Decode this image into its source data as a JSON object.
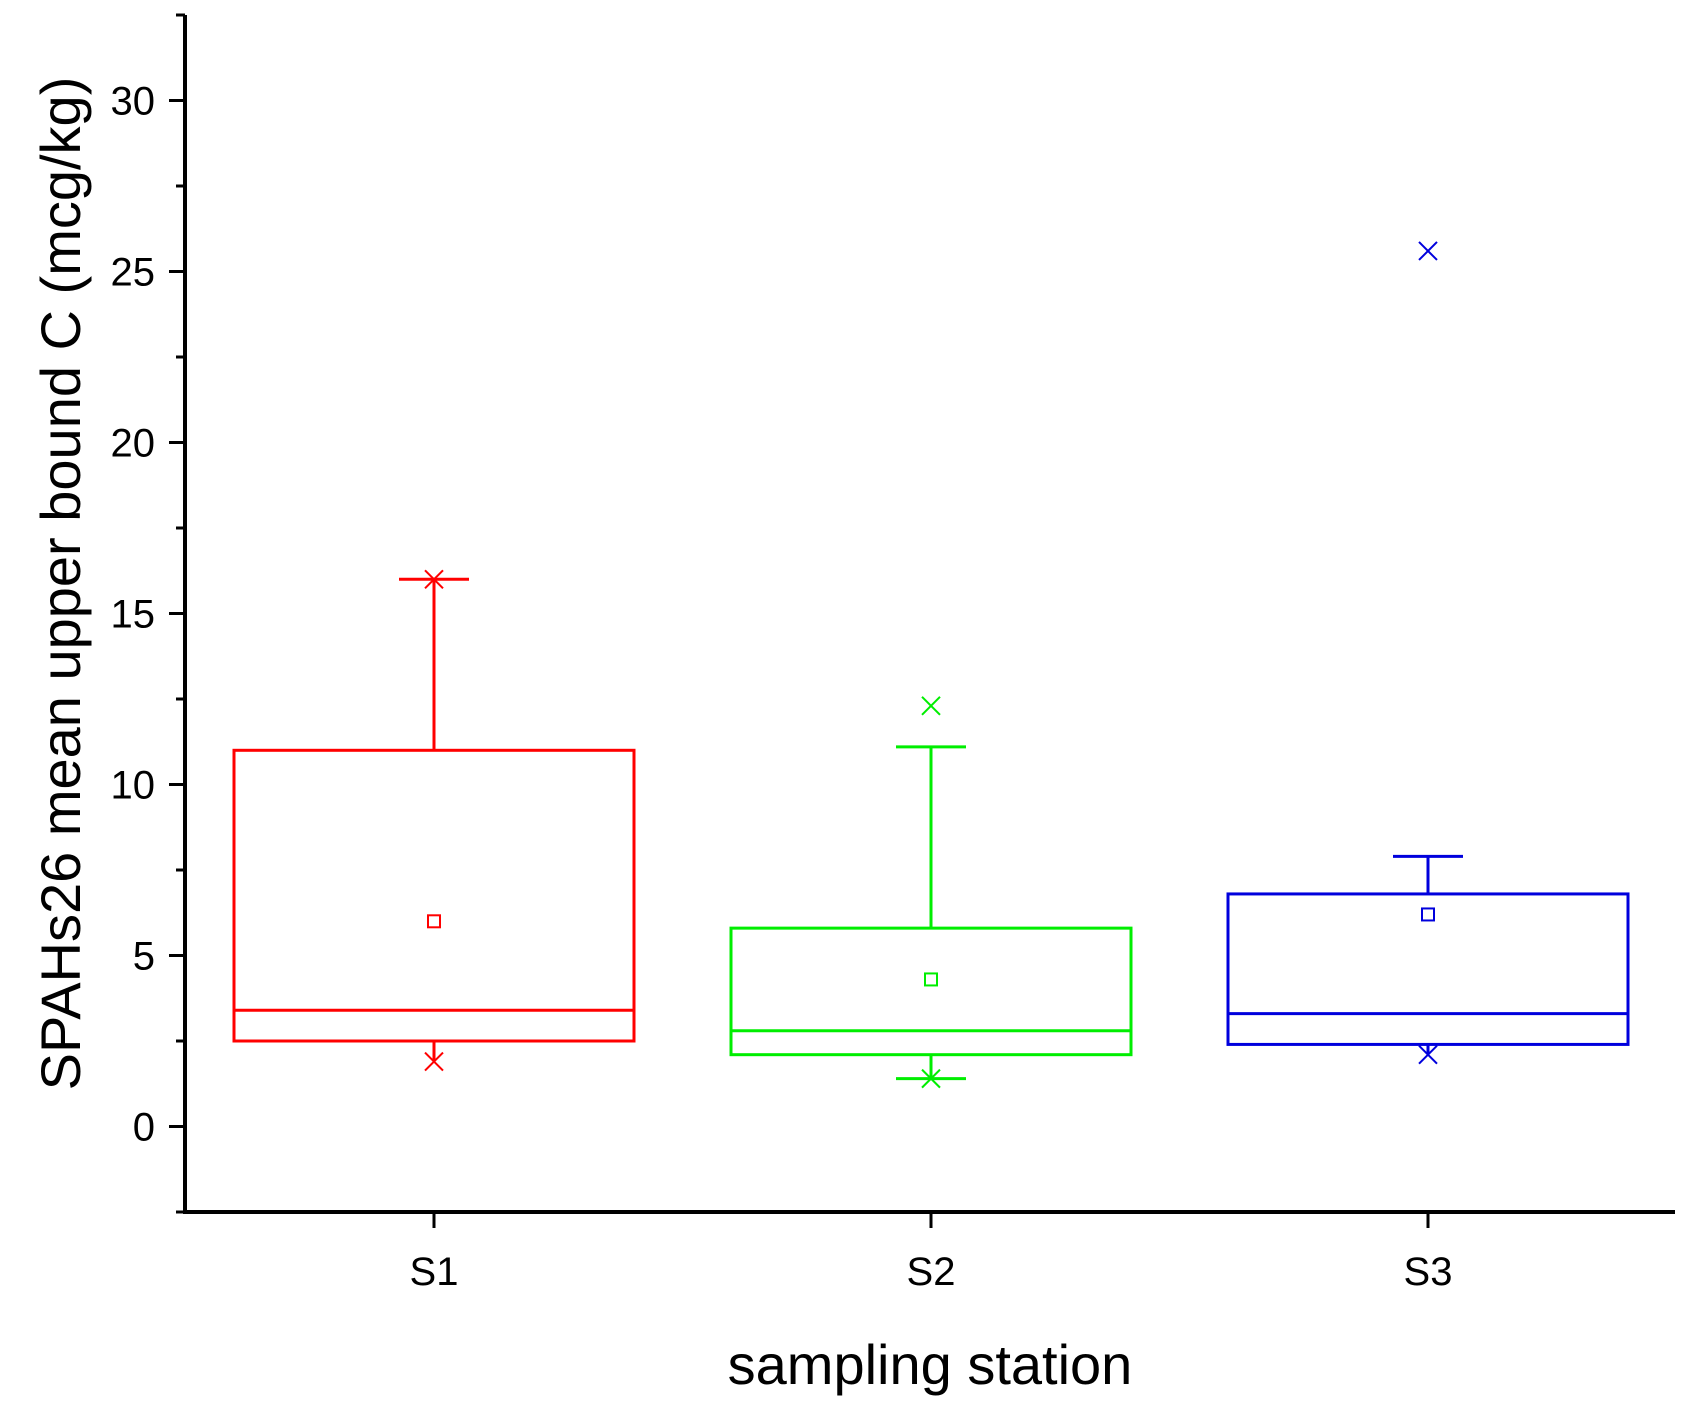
{
  "chart_data": {
    "type": "box",
    "title": "",
    "xlabel": "sampling station",
    "ylabel": "SPAHs26 mean upper bound C (mcg/kg)",
    "ylim": [
      -2.5,
      32.5
    ],
    "yticks": [
      0,
      5,
      10,
      15,
      20,
      25,
      30
    ],
    "categories": [
      "S1",
      "S2",
      "S3"
    ],
    "boxes": [
      {
        "name": "S1",
        "color": "#ff0000",
        "whisker_low": 2.5,
        "q1": 2.5,
        "median": 3.4,
        "q3": 11.0,
        "whisker_high": 16.0,
        "mean": 6.0,
        "min_marker": 1.9,
        "max_marker": 16.0,
        "outliers": []
      },
      {
        "name": "S2",
        "color": "#00ee00",
        "whisker_low": 1.4,
        "q1": 2.1,
        "median": 2.8,
        "q3": 5.8,
        "whisker_high": 11.1,
        "mean": 4.3,
        "min_marker": 1.4,
        "max_marker": 12.3,
        "outliers": []
      },
      {
        "name": "S3",
        "color": "#0000dd",
        "whisker_low": 2.4,
        "q1": 2.4,
        "median": 3.3,
        "q3": 6.8,
        "whisker_high": 7.9,
        "mean": 6.2,
        "min_marker": 2.1,
        "max_marker": 25.6,
        "outliers": []
      }
    ]
  }
}
